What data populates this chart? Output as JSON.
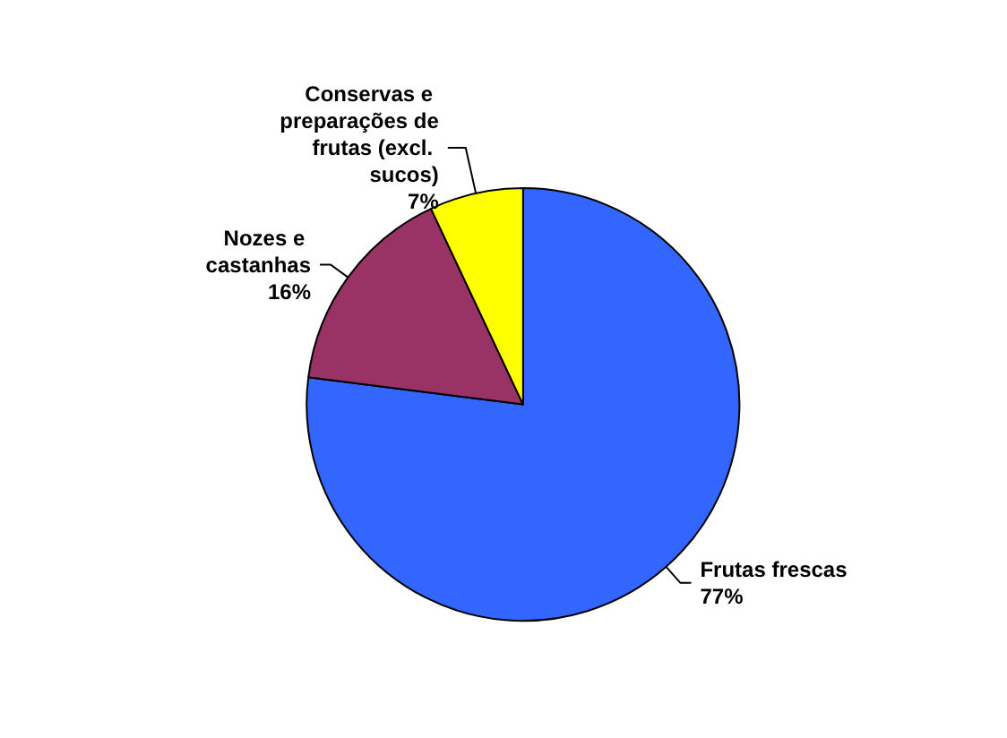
{
  "chart_data": {
    "type": "pie",
    "categories": [
      "Frutas frescas",
      "Nozes e castanhas",
      "Conservas e preparações de frutas (excl. sucos)"
    ],
    "values": [
      77,
      16,
      7
    ],
    "value_labels": [
      "77%",
      "16%",
      "7%"
    ],
    "colors": [
      "#3366ff",
      "#993366",
      "#ffff00"
    ],
    "legend": false
  }
}
